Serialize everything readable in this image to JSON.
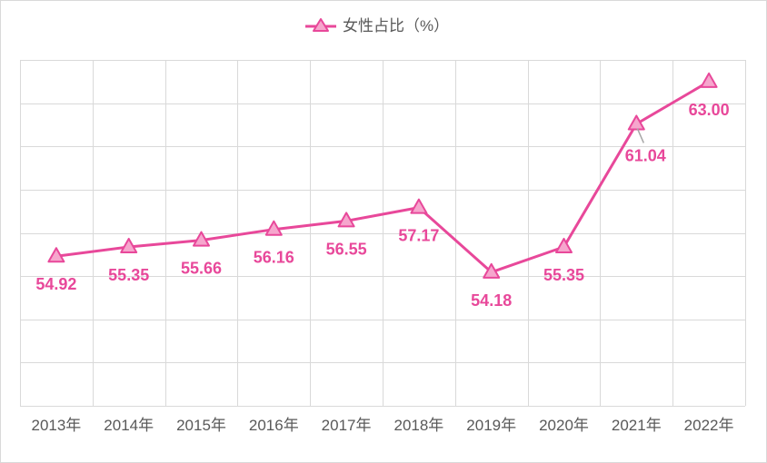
{
  "chart_data": {
    "type": "line",
    "categories": [
      "2013年",
      "2014年",
      "2015年",
      "2016年",
      "2017年",
      "2018年",
      "2019年",
      "2020年",
      "2021年",
      "2022年"
    ],
    "series": [
      {
        "name": "女性占比（%）",
        "values": [
          54.92,
          55.35,
          55.66,
          56.16,
          56.55,
          57.17,
          54.18,
          55.35,
          61.04,
          63.0
        ],
        "color": "#e8489a",
        "marker": "triangle",
        "marker_fill": "#f6a6cd"
      }
    ],
    "ylim": [
      48,
      64
    ],
    "ytick_step": 2,
    "show_y_tick_labels": false,
    "grid": true,
    "data_labels": "below",
    "data_label_decimals": 2,
    "legend": "top-center",
    "colors": {
      "grid": "#d9d9d9",
      "tick_label": "#595959",
      "data_label": "#e8489a",
      "leader_line": "#a6a6a6"
    }
  }
}
